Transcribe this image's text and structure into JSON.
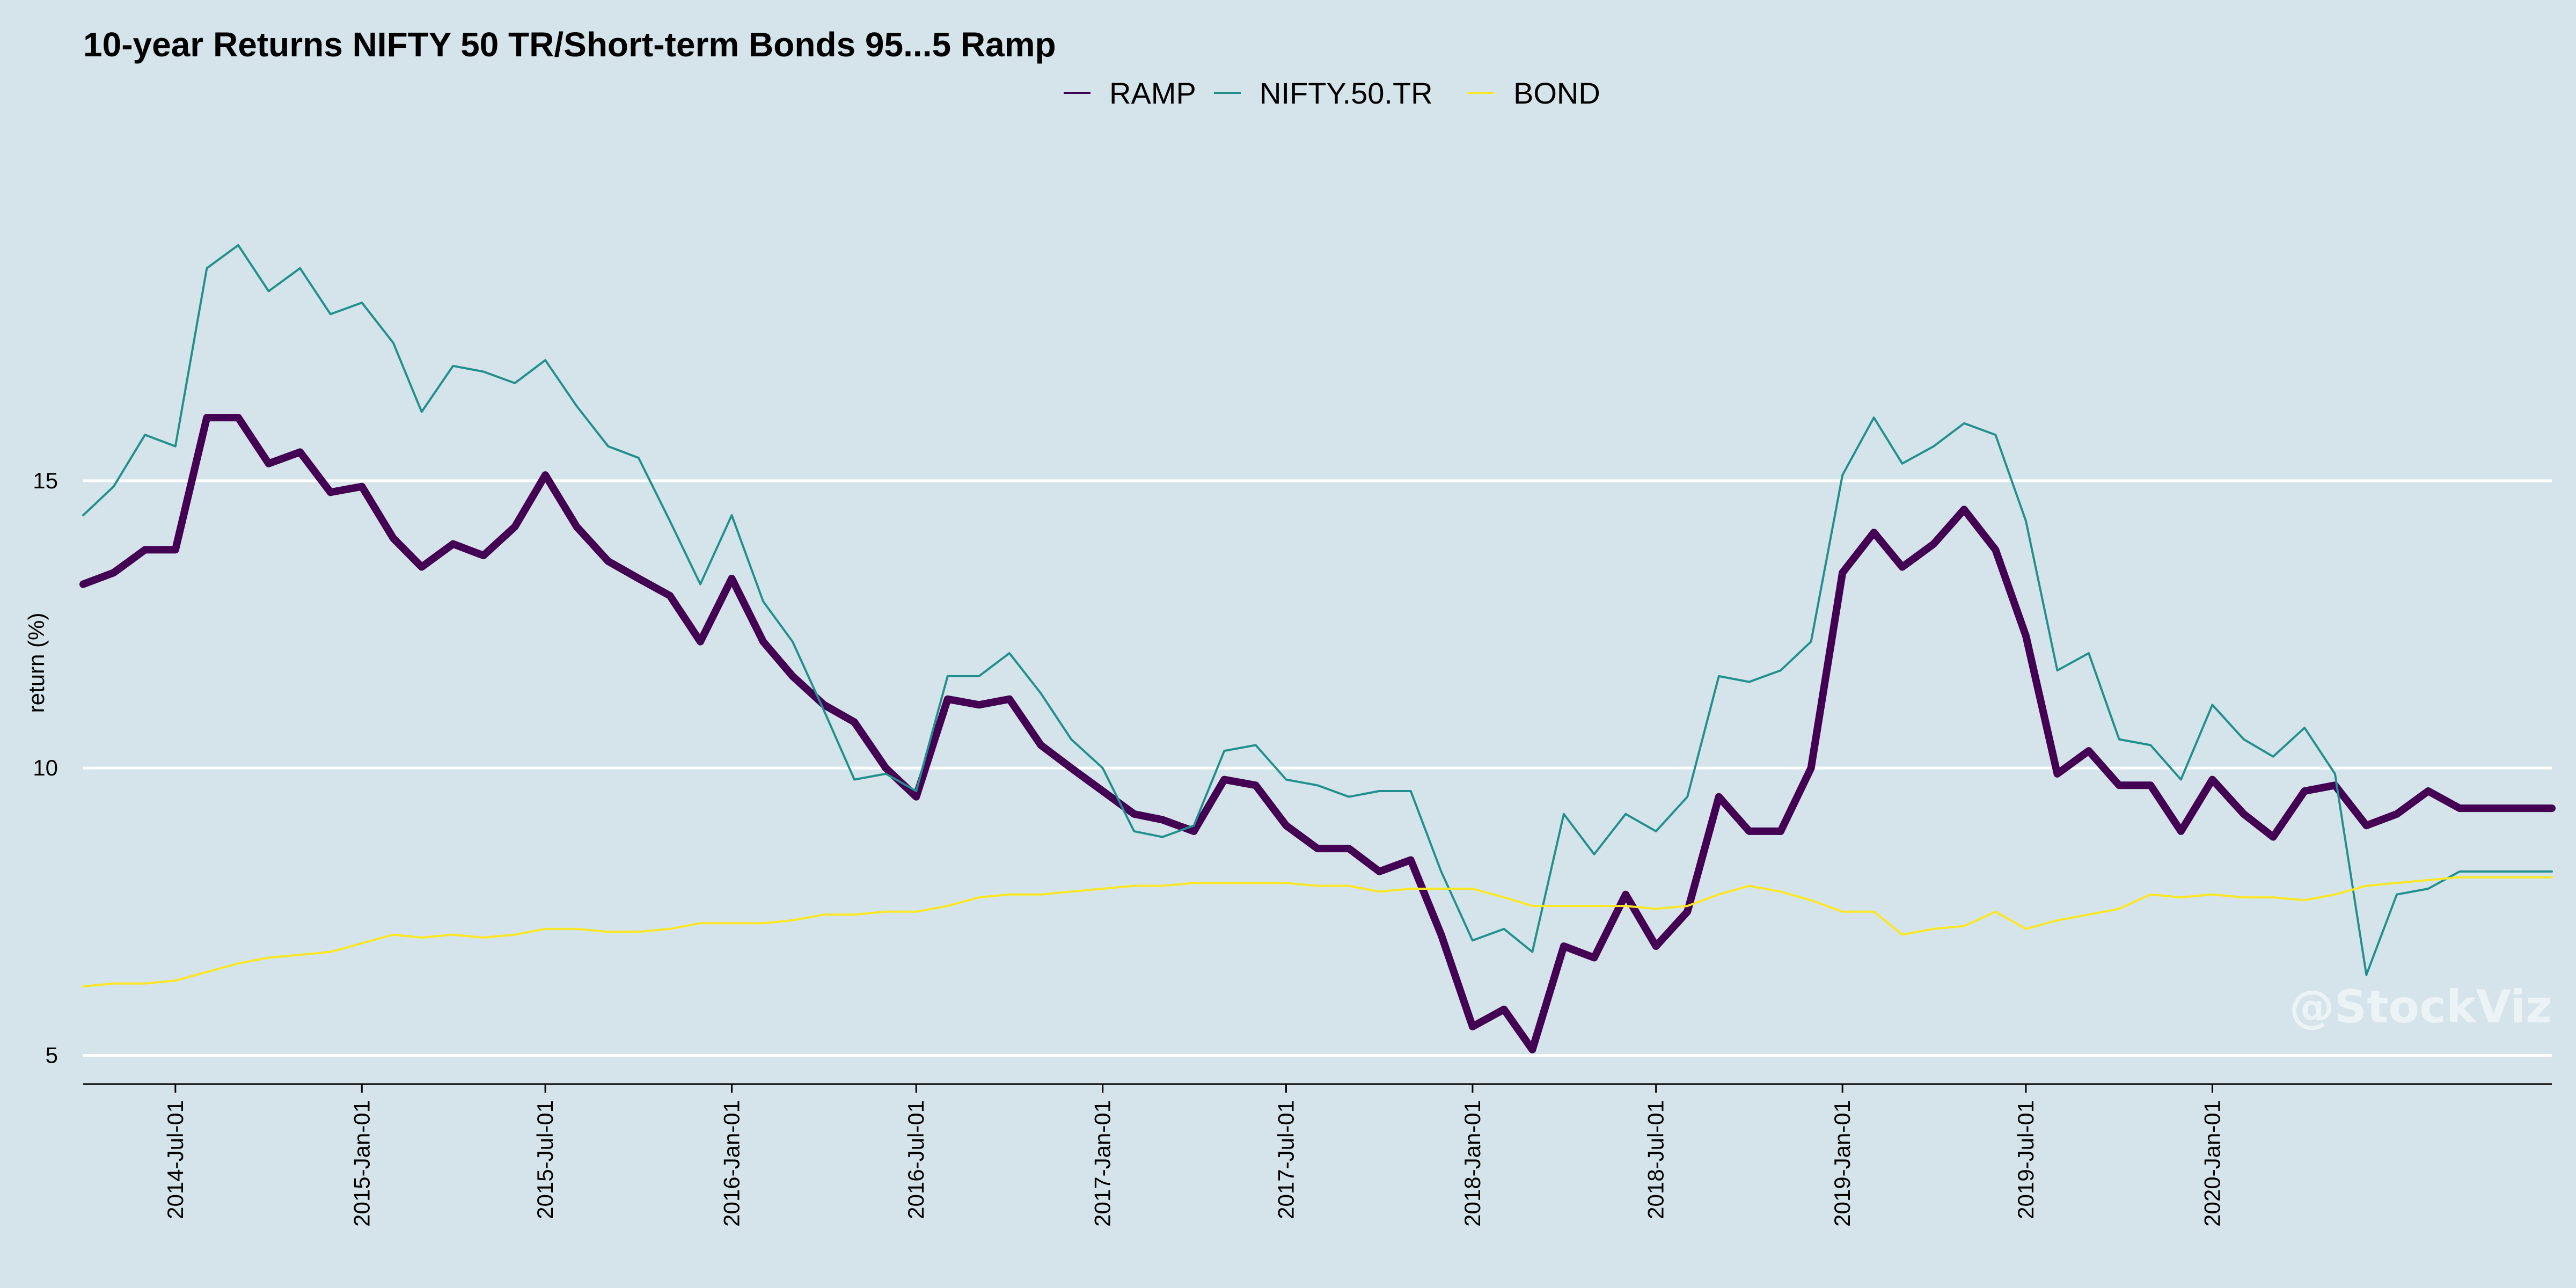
{
  "chart_data": {
    "type": "line",
    "title": "10-year Returns NIFTY 50 TR/Short-term Bonds 95...5 Ramp",
    "ylabel": "return (%)",
    "xlabel": "",
    "ylim": [
      4.5,
      21.5
    ],
    "yticks": [
      5,
      10,
      15
    ],
    "grid": "horizontal",
    "legend_position": "top",
    "watermark": "@StockViz",
    "x_start": "2014-04-01",
    "x_end": "2020-12-01",
    "x_ticks": [
      "2014-Jul-01",
      "2015-Jan-01",
      "2015-Jul-01",
      "2016-Jan-01",
      "2016-Jul-01",
      "2017-Jan-01",
      "2017-Jul-01",
      "2018-Jan-01",
      "2018-Jul-01",
      "2019-Jan-01",
      "2019-Jul-01",
      "2020-Jan-01"
    ],
    "x": [
      "2014-04",
      "2014-05",
      "2014-06",
      "2014-07",
      "2014-08",
      "2014-09",
      "2014-10",
      "2014-11",
      "2014-12",
      "2015-01",
      "2015-02",
      "2015-03",
      "2015-04",
      "2015-05",
      "2015-06",
      "2015-07",
      "2015-08",
      "2015-09",
      "2015-10",
      "2015-11",
      "2015-12",
      "2016-01",
      "2016-02",
      "2016-03",
      "2016-04",
      "2016-05",
      "2016-06",
      "2016-07",
      "2016-08",
      "2016-09",
      "2016-10",
      "2016-11",
      "2016-12",
      "2017-01",
      "2017-02",
      "2017-03",
      "2017-04",
      "2017-05",
      "2017-06",
      "2017-07",
      "2017-08",
      "2017-09",
      "2017-10",
      "2017-11",
      "2017-12",
      "2018-01",
      "2018-02",
      "2018-03",
      "2018-04",
      "2018-05",
      "2018-06",
      "2018-07",
      "2018-08",
      "2018-09",
      "2018-10",
      "2018-11",
      "2018-12",
      "2019-01",
      "2019-02",
      "2019-03",
      "2019-04",
      "2019-05",
      "2019-06",
      "2019-07",
      "2019-08",
      "2019-09",
      "2019-10",
      "2019-11",
      "2019-12",
      "2020-01",
      "2020-02",
      "2020-03",
      "2020-04",
      "2020-05",
      "2020-06",
      "2020-07",
      "2020-08",
      "2020-09",
      "2020-10",
      "2020-11",
      "2020-12"
    ],
    "series": [
      {
        "name": "RAMP",
        "color": "#440154",
        "width": "thick",
        "values": [
          13.2,
          13.4,
          13.8,
          13.8,
          16.1,
          16.1,
          15.3,
          15.5,
          14.8,
          14.9,
          14.0,
          13.5,
          13.9,
          13.7,
          14.2,
          15.1,
          14.2,
          13.6,
          13.3,
          13.0,
          12.2,
          13.3,
          12.2,
          11.6,
          11.1,
          10.8,
          10.0,
          9.5,
          11.2,
          11.1,
          11.2,
          10.4,
          10.0,
          9.6,
          9.2,
          9.1,
          8.9,
          9.8,
          9.7,
          9.0,
          8.6,
          8.6,
          8.2,
          8.4,
          7.1,
          5.5,
          5.8,
          5.1,
          6.9,
          6.7,
          7.8,
          6.9,
          7.5,
          9.5,
          8.9,
          8.9,
          10.0,
          13.4,
          14.1,
          13.5,
          13.9,
          14.5,
          13.8,
          12.3,
          9.9,
          10.3,
          9.7,
          9.7,
          8.9,
          9.8,
          9.2,
          8.8,
          9.6,
          9.7,
          9.0,
          9.2,
          9.6,
          9.3,
          9.3,
          9.3,
          9.3
        ]
      },
      {
        "name": "NIFTY.50.TR",
        "color": "#21908d",
        "width": "thin",
        "values": [
          14.4,
          14.9,
          15.8,
          15.6,
          18.7,
          19.1,
          18.3,
          18.7,
          17.9,
          18.1,
          17.4,
          16.2,
          17.0,
          16.9,
          16.7,
          17.1,
          16.3,
          15.6,
          15.4,
          14.3,
          13.2,
          14.4,
          12.9,
          12.2,
          11.0,
          9.8,
          9.9,
          9.6,
          11.6,
          11.6,
          12.0,
          11.3,
          10.5,
          10.0,
          8.9,
          8.8,
          9.0,
          10.3,
          10.4,
          9.8,
          9.7,
          9.5,
          9.6,
          9.6,
          8.2,
          7.0,
          7.2,
          6.8,
          9.2,
          8.5,
          9.2,
          8.9,
          9.5,
          11.6,
          11.5,
          11.7,
          12.2,
          15.1,
          16.1,
          15.3,
          15.6,
          16.0,
          15.8,
          14.3,
          11.7,
          12.0,
          10.5,
          10.4,
          9.8,
          11.1,
          10.5,
          10.2,
          10.7,
          9.9,
          6.4,
          7.8,
          7.9,
          8.2,
          8.2,
          8.2,
          8.2
        ]
      },
      {
        "name": "BOND",
        "color": "#fde725",
        "width": "thin",
        "values": [
          6.2,
          6.25,
          6.25,
          6.3,
          6.45,
          6.6,
          6.7,
          6.75,
          6.8,
          6.95,
          7.1,
          7.05,
          7.1,
          7.05,
          7.1,
          7.2,
          7.2,
          7.15,
          7.15,
          7.2,
          7.3,
          7.3,
          7.3,
          7.35,
          7.45,
          7.45,
          7.5,
          7.5,
          7.6,
          7.75,
          7.8,
          7.8,
          7.85,
          7.9,
          7.95,
          7.95,
          8.0,
          8.0,
          8.0,
          8.0,
          7.95,
          7.95,
          7.85,
          7.9,
          7.9,
          7.9,
          7.75,
          7.6,
          7.6,
          7.6,
          7.6,
          7.55,
          7.6,
          7.8,
          7.95,
          7.85,
          7.7,
          7.5,
          7.5,
          7.1,
          7.2,
          7.25,
          7.5,
          7.2,
          7.35,
          7.45,
          7.55,
          7.8,
          7.75,
          7.8,
          7.75,
          7.75,
          7.7,
          7.8,
          7.95,
          8.0,
          8.05,
          8.1,
          8.1,
          8.1,
          8.1
        ]
      }
    ]
  }
}
